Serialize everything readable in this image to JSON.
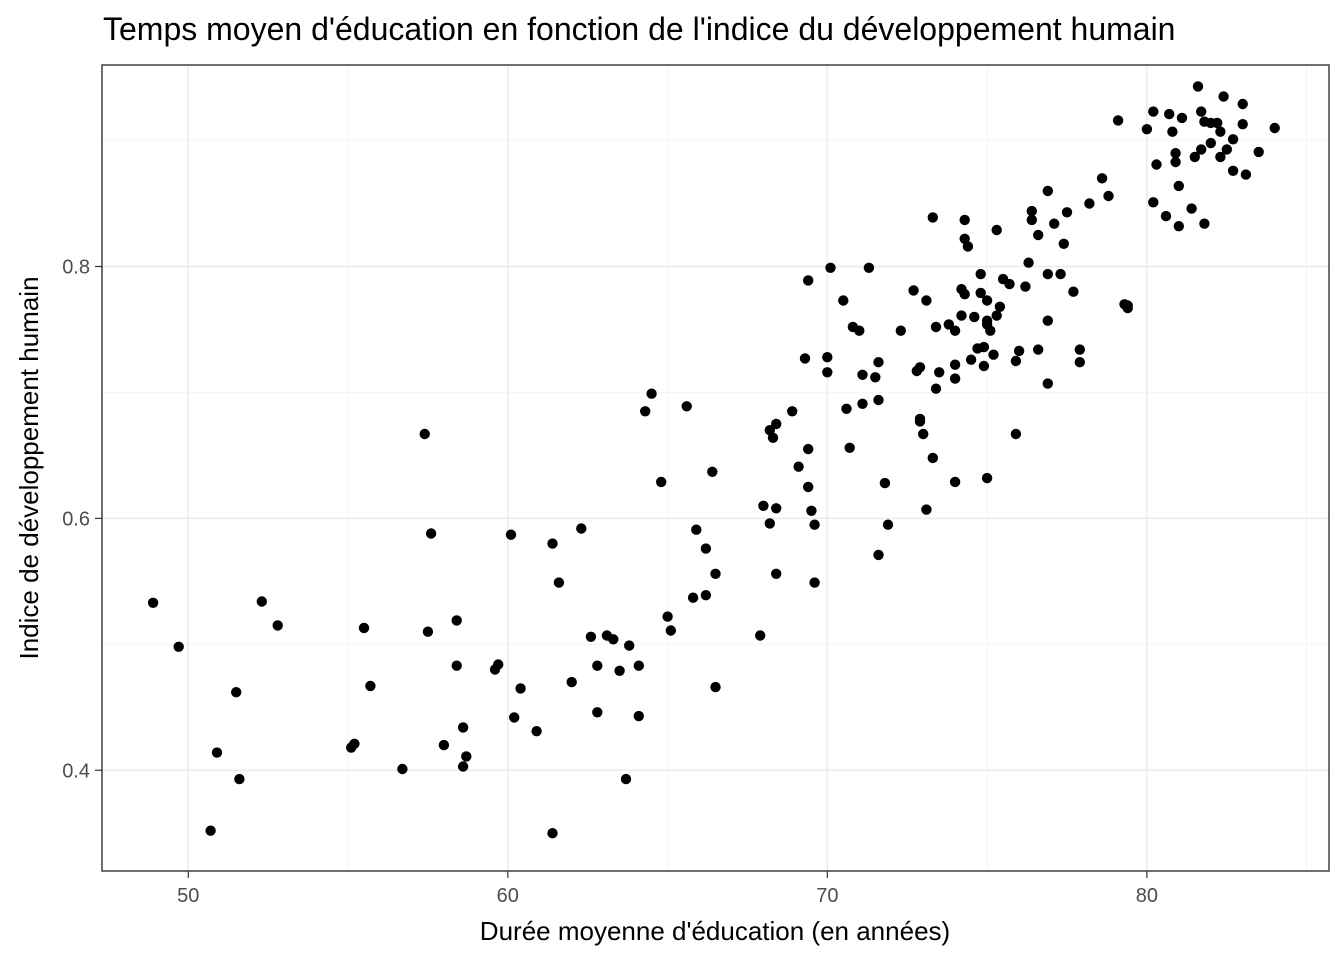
{
  "chart_data": {
    "type": "scatter",
    "title": "Temps moyen d'éducation en fonction de l'indice du développement humain",
    "xlabel": "Durée moyenne d'éducation (en années)",
    "ylabel": "Indice de développement humain",
    "xlim": [
      47.3,
      85.7
    ],
    "ylim": [
      0.32,
      0.96
    ],
    "x_ticks": [
      50,
      60,
      70,
      80
    ],
    "y_ticks": [
      0.4,
      0.6,
      0.8
    ],
    "x_tick_labels": [
      "50",
      "60",
      "70",
      "80"
    ],
    "y_tick_labels": [
      "0.4",
      "0.6",
      "0.8"
    ],
    "grid": true,
    "legend": "none",
    "point_color": "#000000",
    "points": [
      [
        48.9,
        0.533
      ],
      [
        49.7,
        0.498
      ],
      [
        50.7,
        0.352
      ],
      [
        50.9,
        0.414
      ],
      [
        51.5,
        0.462
      ],
      [
        51.6,
        0.393
      ],
      [
        52.3,
        0.534
      ],
      [
        52.8,
        0.515
      ],
      [
        55.1,
        0.418
      ],
      [
        55.2,
        0.421
      ],
      [
        55.5,
        0.513
      ],
      [
        55.7,
        0.467
      ],
      [
        56.7,
        0.401
      ],
      [
        57.4,
        0.667
      ],
      [
        57.5,
        0.51
      ],
      [
        57.6,
        0.588
      ],
      [
        58.0,
        0.42
      ],
      [
        58.4,
        0.519
      ],
      [
        58.4,
        0.483
      ],
      [
        58.6,
        0.403
      ],
      [
        58.6,
        0.434
      ],
      [
        58.7,
        0.411
      ],
      [
        59.6,
        0.48
      ],
      [
        59.7,
        0.484
      ],
      [
        60.1,
        0.587
      ],
      [
        60.2,
        0.442
      ],
      [
        60.4,
        0.465
      ],
      [
        60.9,
        0.431
      ],
      [
        61.4,
        0.58
      ],
      [
        61.4,
        0.35
      ],
      [
        61.6,
        0.549
      ],
      [
        62.0,
        0.47
      ],
      [
        62.3,
        0.592
      ],
      [
        62.6,
        0.506
      ],
      [
        62.8,
        0.446
      ],
      [
        62.8,
        0.483
      ],
      [
        63.1,
        0.507
      ],
      [
        63.3,
        0.504
      ],
      [
        63.5,
        0.479
      ],
      [
        63.7,
        0.393
      ],
      [
        63.8,
        0.499
      ],
      [
        64.1,
        0.443
      ],
      [
        64.1,
        0.483
      ],
      [
        64.3,
        0.685
      ],
      [
        64.5,
        0.699
      ],
      [
        64.8,
        0.629
      ],
      [
        65.0,
        0.522
      ],
      [
        65.1,
        0.511
      ],
      [
        65.6,
        0.689
      ],
      [
        65.8,
        0.537
      ],
      [
        65.9,
        0.591
      ],
      [
        66.2,
        0.539
      ],
      [
        66.2,
        0.576
      ],
      [
        66.4,
        0.637
      ],
      [
        66.5,
        0.466
      ],
      [
        66.5,
        0.556
      ],
      [
        67.9,
        0.507
      ],
      [
        68.0,
        0.61
      ],
      [
        68.2,
        0.596
      ],
      [
        68.2,
        0.67
      ],
      [
        68.3,
        0.664
      ],
      [
        68.4,
        0.608
      ],
      [
        68.4,
        0.675
      ],
      [
        68.4,
        0.556
      ],
      [
        68.9,
        0.685
      ],
      [
        69.1,
        0.641
      ],
      [
        69.3,
        0.727
      ],
      [
        69.4,
        0.789
      ],
      [
        69.4,
        0.655
      ],
      [
        69.4,
        0.625
      ],
      [
        69.5,
        0.606
      ],
      [
        69.6,
        0.595
      ],
      [
        69.6,
        0.549
      ],
      [
        70.0,
        0.728
      ],
      [
        70.0,
        0.716
      ],
      [
        70.1,
        0.799
      ],
      [
        70.5,
        0.773
      ],
      [
        70.6,
        0.687
      ],
      [
        70.7,
        0.656
      ],
      [
        70.8,
        0.752
      ],
      [
        71.0,
        0.749
      ],
      [
        71.1,
        0.714
      ],
      [
        71.1,
        0.691
      ],
      [
        71.3,
        0.799
      ],
      [
        71.5,
        0.712
      ],
      [
        71.6,
        0.724
      ],
      [
        71.6,
        0.694
      ],
      [
        71.6,
        0.571
      ],
      [
        71.8,
        0.628
      ],
      [
        71.9,
        0.595
      ],
      [
        72.3,
        0.749
      ],
      [
        72.7,
        0.781
      ],
      [
        72.8,
        0.717
      ],
      [
        72.9,
        0.72
      ],
      [
        72.9,
        0.679
      ],
      [
        72.9,
        0.677
      ],
      [
        73.0,
        0.667
      ],
      [
        73.1,
        0.773
      ],
      [
        73.1,
        0.607
      ],
      [
        73.3,
        0.839
      ],
      [
        73.3,
        0.648
      ],
      [
        73.4,
        0.703
      ],
      [
        73.4,
        0.752
      ],
      [
        73.5,
        0.716
      ],
      [
        73.8,
        0.754
      ],
      [
        74.0,
        0.749
      ],
      [
        74.0,
        0.711
      ],
      [
        74.0,
        0.722
      ],
      [
        74.0,
        0.629
      ],
      [
        74.2,
        0.761
      ],
      [
        74.2,
        0.782
      ],
      [
        74.3,
        0.822
      ],
      [
        74.3,
        0.778
      ],
      [
        74.3,
        0.837
      ],
      [
        74.4,
        0.816
      ],
      [
        74.5,
        0.726
      ],
      [
        74.6,
        0.76
      ],
      [
        74.7,
        0.735
      ],
      [
        74.8,
        0.779
      ],
      [
        74.8,
        0.794
      ],
      [
        74.9,
        0.721
      ],
      [
        74.9,
        0.736
      ],
      [
        75.0,
        0.754
      ],
      [
        75.0,
        0.773
      ],
      [
        75.0,
        0.757
      ],
      [
        75.0,
        0.632
      ],
      [
        75.1,
        0.749
      ],
      [
        75.2,
        0.73
      ],
      [
        75.3,
        0.829
      ],
      [
        75.3,
        0.761
      ],
      [
        75.4,
        0.768
      ],
      [
        75.5,
        0.79
      ],
      [
        75.7,
        0.786
      ],
      [
        75.9,
        0.725
      ],
      [
        75.9,
        0.667
      ],
      [
        76.0,
        0.733
      ],
      [
        76.2,
        0.784
      ],
      [
        76.3,
        0.803
      ],
      [
        76.4,
        0.844
      ],
      [
        76.4,
        0.837
      ],
      [
        76.6,
        0.825
      ],
      [
        76.6,
        0.734
      ],
      [
        76.9,
        0.86
      ],
      [
        76.9,
        0.794
      ],
      [
        76.9,
        0.757
      ],
      [
        76.9,
        0.707
      ],
      [
        77.1,
        0.834
      ],
      [
        77.3,
        0.794
      ],
      [
        77.4,
        0.818
      ],
      [
        77.5,
        0.843
      ],
      [
        77.7,
        0.78
      ],
      [
        77.9,
        0.734
      ],
      [
        77.9,
        0.724
      ],
      [
        78.2,
        0.85
      ],
      [
        78.6,
        0.87
      ],
      [
        78.8,
        0.856
      ],
      [
        79.1,
        0.916
      ],
      [
        79.3,
        0.77
      ],
      [
        79.4,
        0.767
      ],
      [
        79.4,
        0.769
      ],
      [
        80.0,
        0.909
      ],
      [
        80.2,
        0.923
      ],
      [
        80.2,
        0.851
      ],
      [
        80.3,
        0.881
      ],
      [
        80.6,
        0.84
      ],
      [
        80.7,
        0.921
      ],
      [
        80.8,
        0.907
      ],
      [
        80.9,
        0.89
      ],
      [
        80.9,
        0.883
      ],
      [
        81.0,
        0.832
      ],
      [
        81.0,
        0.864
      ],
      [
        81.1,
        0.918
      ],
      [
        81.4,
        0.846
      ],
      [
        81.5,
        0.887
      ],
      [
        81.6,
        0.943
      ],
      [
        81.7,
        0.923
      ],
      [
        81.7,
        0.893
      ],
      [
        81.8,
        0.834
      ],
      [
        81.8,
        0.915
      ],
      [
        82.0,
        0.898
      ],
      [
        82.0,
        0.914
      ],
      [
        82.2,
        0.914
      ],
      [
        82.3,
        0.887
      ],
      [
        82.3,
        0.907
      ],
      [
        82.4,
        0.935
      ],
      [
        82.5,
        0.893
      ],
      [
        82.7,
        0.876
      ],
      [
        82.7,
        0.901
      ],
      [
        83.0,
        0.929
      ],
      [
        83.0,
        0.913
      ],
      [
        83.1,
        0.873
      ],
      [
        83.5,
        0.891
      ],
      [
        84.0,
        0.91
      ]
    ]
  }
}
